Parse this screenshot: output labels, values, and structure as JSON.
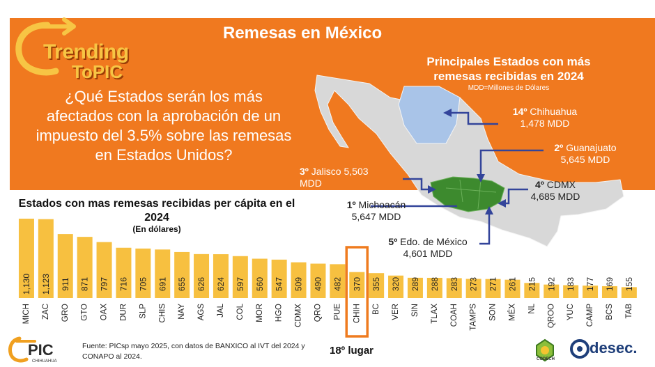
{
  "brand": {
    "line1": "Trending",
    "line2": "ToPIC",
    "registered": "®"
  },
  "header": {
    "title": "Remesas en México",
    "question": "¿Qué Estados serán los más afectados con la aprobación de un impuesto del 3.5% sobre las remesas en Estados Unidos?"
  },
  "map": {
    "title": "Principales Estados con más remesas recibidas en 2024",
    "subtitle": "MDD=Millones de Dólares",
    "colors": {
      "highlight_green": "#3d8a2e",
      "highlight_blue": "#a9c4e8",
      "base_gray": "#d8d8d8",
      "arrow": "#33449a"
    },
    "callouts": [
      {
        "rank": "14º",
        "name": "Chihuahua",
        "value": "1,478 MDD"
      },
      {
        "rank": "2º",
        "name": "Guanajuato",
        "value": "5,645 MDD"
      },
      {
        "rank": "3º",
        "name": "Jalisco 5,503",
        "value": "MDD"
      },
      {
        "rank": "4º",
        "name": "CDMX",
        "value": "4,685 MDD"
      },
      {
        "rank": "1º",
        "name": "Michoacán",
        "value": "5,647 MDD"
      },
      {
        "rank": "5º",
        "name": "Edo. de México",
        "value": "4,601 MDD"
      }
    ]
  },
  "chart": {
    "title": "Estados con mas remesas recibidas per cápita en el 2024",
    "subtitle": "(En dólares)",
    "highlight_note": "18º lugar"
  },
  "chart_data": {
    "type": "bar",
    "categories": [
      "MICH",
      "ZAC",
      "GRO",
      "GTO",
      "OAX",
      "DUR",
      "SLP",
      "CHIS",
      "NAY",
      "AGS",
      "JAL",
      "COL",
      "MOR",
      "HGO",
      "CDMX",
      "QRO",
      "PUE",
      "CHIH",
      "BC",
      "VER",
      "SIN",
      "TLAX",
      "COAH",
      "TAMPS",
      "SON",
      "MÉX",
      "NL",
      "QROO",
      "YUC",
      "CAMP",
      "BCS",
      "TAB"
    ],
    "values": [
      1130,
      1123,
      911,
      871,
      797,
      716,
      705,
      691,
      655,
      626,
      624,
      597,
      560,
      547,
      509,
      490,
      482,
      370,
      355,
      320,
      289,
      288,
      283,
      273,
      271,
      261,
      215,
      192,
      183,
      177,
      169,
      155
    ],
    "value_labels": [
      "1,130",
      "1,123",
      "911",
      "871",
      "797",
      "716",
      "705",
      "691",
      "655",
      "626",
      "624",
      "597",
      "560",
      "547",
      "509",
      "490",
      "482",
      "370",
      "355",
      "320",
      "289",
      "288",
      "283",
      "273",
      "271",
      "261",
      "215",
      "192",
      "183",
      "177",
      "169",
      "155"
    ],
    "highlighted_category": "CHIH",
    "ylim": [
      0,
      1130
    ],
    "grid": false,
    "colors": {
      "bar": "#f7c040",
      "highlight_outline": "#ef7b1f",
      "label": "#222222"
    }
  },
  "footer": {
    "logo_text": "PIC",
    "logo_sub": "CHIHUAHUA",
    "source": "Fuente: PICsp mayo 2025, con datos de BANXICO al IVT del 2024 y CONAPO al 2024.",
    "codech_label": "CODECH",
    "desec_label": "desec."
  }
}
